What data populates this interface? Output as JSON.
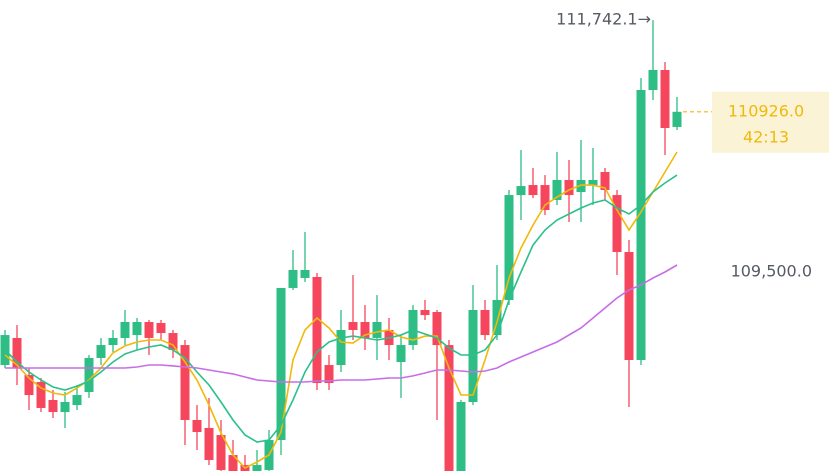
{
  "chart_data": {
    "type": "candlestick",
    "ylim": [
      107729,
      111921
    ],
    "yticks": [
      {
        "value": 109500,
        "label": "109,500.0"
      }
    ],
    "up_color": "#2ebd85",
    "down_color": "#f6465d",
    "open": [
      108672,
      108913,
      108583,
      108521,
      108361,
      108254,
      108316,
      108432,
      108735,
      108850,
      108913,
      108939,
      109055,
      109046,
      108957,
      108850,
      108183,
      108112,
      108049,
      107871,
      107782,
      107700,
      107738,
      108005,
      109358,
      109447,
      109456,
      108672,
      108672,
      109055,
      109055,
      108913,
      108984,
      108699,
      108850,
      109162,
      109144,
      108850,
      107700,
      108343,
      109162,
      108939,
      109251,
      110185,
      110274,
      110274,
      110141,
      110319,
      110212,
      110274,
      110390,
      110185,
      109678,
      108717,
      111120,
      111298,
      110791
    ],
    "high": [
      108984,
      109028,
      108646,
      108557,
      108450,
      108432,
      108494,
      108761,
      108913,
      108984,
      109162,
      109091,
      109073,
      109073,
      108984,
      108895,
      108316,
      108379,
      108183,
      108005,
      107871,
      107916,
      108094,
      109358,
      109696,
      109856,
      109491,
      108761,
      109162,
      109473,
      109206,
      109295,
      109091,
      108939,
      109206,
      109251,
      109162,
      108895,
      108361,
      109384,
      109251,
      109562,
      110230,
      110586,
      110426,
      110363,
      110568,
      110497,
      110675,
      110604,
      110426,
      110230,
      109785,
      111227,
      111742.1,
      111369,
      111058
    ],
    "low": [
      108646,
      108494,
      108272,
      108254,
      108201,
      108112,
      108272,
      108379,
      108672,
      108788,
      108850,
      108806,
      108761,
      108895,
      108735,
      107960,
      107916,
      107782,
      107650,
      107650,
      107650,
      107650,
      107650,
      107871,
      109340,
      109411,
      108450,
      108450,
      108610,
      108895,
      108806,
      108717,
      108717,
      108379,
      108806,
      109073,
      108183,
      107650,
      107650,
      108316,
      108895,
      108895,
      109206,
      109963,
      110159,
      110007,
      110096,
      109945,
      109945,
      110096,
      110141,
      109473,
      108299,
      108672,
      111031,
      110541,
      110764
    ],
    "close": [
      108939,
      108646,
      108405,
      108290,
      108254,
      108343,
      108405,
      108735,
      108850,
      108913,
      109055,
      109055,
      108913,
      108957,
      108806,
      108183,
      108076,
      107827,
      107738,
      107700,
      107700,
      107782,
      108005,
      109358,
      109518,
      109518,
      108512,
      108512,
      108984,
      108984,
      108913,
      109055,
      108850,
      108850,
      109162,
      109117,
      108850,
      107700,
      108343,
      109162,
      108939,
      109251,
      110185,
      110265,
      110185,
      110052,
      110319,
      110185,
      110319,
      110319,
      110230,
      109678,
      108717,
      111120,
      111298,
      110782,
      110926
    ],
    "lines": [
      {
        "color": "#f0b90b",
        "values": [
          108761,
          108672,
          108557,
          108468,
          108423,
          108405,
          108468,
          108539,
          108646,
          108780,
          108842,
          108877,
          108895,
          108895,
          108850,
          108699,
          108539,
          108316,
          108067,
          107871,
          107756,
          107809,
          107871,
          108076,
          108717,
          108984,
          109091,
          109002,
          108877,
          108868,
          108939,
          108966,
          108984,
          108922,
          108895,
          108930,
          108930,
          108646,
          108405,
          108405,
          108717,
          109055,
          109447,
          109714,
          109918,
          110096,
          110167,
          110230,
          110274,
          110274,
          110248,
          110052,
          109874,
          110034,
          110212,
          110390,
          110568
        ]
      },
      {
        "color": "#2bc08c",
        "values": [
          108806,
          108699,
          108610,
          108539,
          108477,
          108450,
          108485,
          108530,
          108610,
          108699,
          108770,
          108806,
          108833,
          108850,
          108806,
          108735,
          108610,
          108494,
          108343,
          108183,
          108049,
          107987,
          108005,
          108138,
          108361,
          108610,
          108788,
          108877,
          108913,
          108930,
          108913,
          108895,
          108913,
          108939,
          108984,
          108948,
          108913,
          108824,
          108761,
          108761,
          108806,
          108939,
          109251,
          109500,
          109740,
          109874,
          109963,
          110016,
          110070,
          110114,
          110141,
          110070,
          110016,
          110096,
          110212,
          110292,
          110363
        ]
      },
      {
        "color": "#c76ee6",
        "values": [
          108646,
          108646,
          108646,
          108646,
          108646,
          108646,
          108646,
          108646,
          108646,
          108646,
          108646,
          108655,
          108672,
          108672,
          108664,
          108655,
          108646,
          108628,
          108610,
          108593,
          108566,
          108539,
          108530,
          108521,
          108521,
          108521,
          108530,
          108530,
          108539,
          108539,
          108539,
          108548,
          108557,
          108557,
          108575,
          108601,
          108628,
          108628,
          108619,
          108610,
          108619,
          108646,
          108699,
          108744,
          108788,
          108833,
          108877,
          108939,
          109002,
          109091,
          109180,
          109269,
          109340,
          109385,
          109447,
          109500,
          109562
        ]
      }
    ],
    "high_marker": {
      "value": 111742.1,
      "label": "111,742.1→"
    },
    "last_price": {
      "value": 110926,
      "label": "110926.0"
    },
    "countdown": "42:13"
  }
}
